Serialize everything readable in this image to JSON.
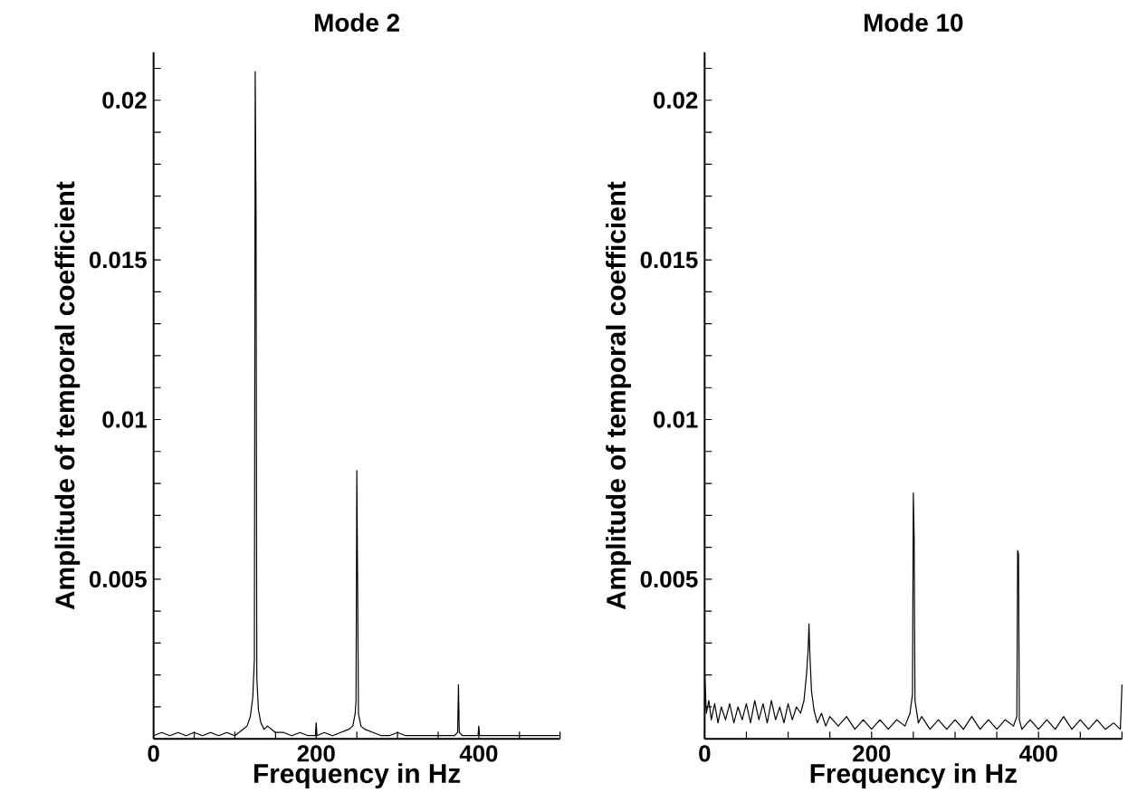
{
  "chart_data": [
    {
      "type": "line",
      "title": "Mode 2",
      "xlabel": "Frequency in Hz",
      "ylabel": "Amplitude of temporal coefficient",
      "xlim": [
        0,
        500
      ],
      "ylim": [
        0,
        0.0215
      ],
      "xticks": [
        0,
        {
          "value": 50,
          "label": null
        },
        {
          "value": 100,
          "label": null
        },
        {
          "value": 150,
          "label": null
        },
        200,
        {
          "value": 250,
          "label": null
        },
        {
          "value": 300,
          "label": null
        },
        {
          "value": 350,
          "label": null
        },
        400,
        {
          "value": 450,
          "label": null
        },
        {
          "value": 500,
          "label": null
        }
      ],
      "yticks": [
        {
          "value": 0.001,
          "label": null
        },
        {
          "value": 0.002,
          "label": null
        },
        {
          "value": 0.003,
          "label": null
        },
        {
          "value": 0.004,
          "label": null
        },
        0.005,
        {
          "value": 0.006,
          "label": null
        },
        {
          "value": 0.007,
          "label": null
        },
        {
          "value": 0.008,
          "label": null
        },
        {
          "value": 0.009,
          "label": null
        },
        0.01,
        {
          "value": 0.011,
          "label": null
        },
        {
          "value": 0.012,
          "label": null
        },
        {
          "value": 0.013,
          "label": null
        },
        {
          "value": 0.014,
          "label": null
        },
        0.015,
        {
          "value": 0.016,
          "label": null
        },
        {
          "value": 0.017,
          "label": null
        },
        {
          "value": 0.018,
          "label": null
        },
        {
          "value": 0.019,
          "label": null
        },
        0.02,
        {
          "value": 0.021,
          "label": null
        }
      ],
      "series": [
        {
          "color": "#000000",
          "x": [
            0,
            10,
            20,
            30,
            40,
            50,
            60,
            70,
            80,
            90,
            100,
            110,
            115,
            119,
            122,
            124,
            125,
            126,
            127,
            129,
            132,
            136,
            140,
            150,
            160,
            170,
            180,
            190,
            199,
            200,
            201,
            210,
            220,
            230,
            240,
            245,
            248,
            249,
            250,
            251,
            252,
            255,
            260,
            270,
            280,
            290,
            300,
            310,
            320,
            330,
            340,
            350,
            360,
            370,
            374,
            375,
            376,
            380,
            390,
            399,
            400,
            401,
            410,
            420,
            430,
            440,
            450,
            460,
            470,
            480,
            490,
            500
          ],
          "values": [
            0.0001,
            0.0002,
            0.0001,
            0.0002,
            0.0001,
            0.0002,
            0.0001,
            0.0002,
            0.0001,
            0.0002,
            0.0001,
            0.0003,
            0.0004,
            0.0007,
            0.0013,
            0.0025,
            0.0209,
            0.0168,
            0.0019,
            0.0009,
            0.0005,
            0.0003,
            0.0004,
            0.0002,
            0.0002,
            0.0001,
            0.0002,
            0.0001,
            0.0001,
            0.0005,
            0.0001,
            0.0002,
            0.0001,
            0.0002,
            0.0003,
            0.0004,
            0.0008,
            0.0012,
            0.0084,
            0.0047,
            0.0008,
            0.0004,
            0.0003,
            0.0002,
            0.0001,
            0.0001,
            0.0002,
            0.0001,
            0.0001,
            0.0001,
            0.0001,
            0.0001,
            0.0001,
            0.0001,
            0.0002,
            0.0017,
            0.0002,
            0.0001,
            0.0001,
            0.0001,
            0.0004,
            0.0001,
            0.0001,
            0.0001,
            0.0001,
            0.0001,
            0.0001,
            0.0001,
            0.0001,
            0.0001,
            0.0001,
            0.0001
          ]
        }
      ]
    },
    {
      "type": "line",
      "title": "Mode 10",
      "xlabel": "Frequency in Hz",
      "ylabel": "Amplitude of temporal coefficient",
      "xlim": [
        0,
        500
      ],
      "ylim": [
        0,
        0.0215
      ],
      "xticks": [
        0,
        {
          "value": 50,
          "label": null
        },
        {
          "value": 100,
          "label": null
        },
        {
          "value": 150,
          "label": null
        },
        200,
        {
          "value": 250,
          "label": null
        },
        {
          "value": 300,
          "label": null
        },
        {
          "value": 350,
          "label": null
        },
        400,
        {
          "value": 450,
          "label": null
        },
        {
          "value": 500,
          "label": null
        }
      ],
      "yticks": [
        {
          "value": 0.001,
          "label": null
        },
        {
          "value": 0.002,
          "label": null
        },
        {
          "value": 0.003,
          "label": null
        },
        {
          "value": 0.004,
          "label": null
        },
        0.005,
        {
          "value": 0.006,
          "label": null
        },
        {
          "value": 0.007,
          "label": null
        },
        {
          "value": 0.008,
          "label": null
        },
        {
          "value": 0.009,
          "label": null
        },
        0.01,
        {
          "value": 0.011,
          "label": null
        },
        {
          "value": 0.012,
          "label": null
        },
        {
          "value": 0.013,
          "label": null
        },
        {
          "value": 0.014,
          "label": null
        },
        0.015,
        {
          "value": 0.016,
          "label": null
        },
        {
          "value": 0.017,
          "label": null
        },
        {
          "value": 0.018,
          "label": null
        },
        {
          "value": 0.019,
          "label": null
        },
        0.02,
        {
          "value": 0.021,
          "label": null
        }
      ],
      "series": [
        {
          "color": "#000000",
          "x": [
            0,
            2,
            5,
            8,
            12,
            16,
            20,
            25,
            30,
            35,
            40,
            45,
            50,
            55,
            60,
            65,
            70,
            75,
            80,
            85,
            90,
            95,
            100,
            105,
            110,
            115,
            119,
            122,
            124,
            125,
            126,
            128,
            131,
            135,
            140,
            145,
            150,
            160,
            170,
            180,
            190,
            200,
            210,
            220,
            230,
            240,
            246,
            249,
            250,
            251,
            252,
            256,
            260,
            270,
            280,
            290,
            300,
            310,
            320,
            330,
            340,
            350,
            360,
            370,
            374,
            375,
            376,
            377,
            380,
            390,
            400,
            410,
            420,
            430,
            440,
            450,
            460,
            470,
            480,
            490,
            498,
            500
          ],
          "values": [
            0.0021,
            0.0008,
            0.0012,
            0.0006,
            0.0011,
            0.0005,
            0.001,
            0.0006,
            0.0011,
            0.0005,
            0.001,
            0.0006,
            0.0011,
            0.0005,
            0.0012,
            0.0006,
            0.0011,
            0.0005,
            0.0012,
            0.0006,
            0.001,
            0.0005,
            0.0011,
            0.0006,
            0.001,
            0.0008,
            0.0012,
            0.002,
            0.0028,
            0.0036,
            0.0027,
            0.0015,
            0.0009,
            0.0005,
            0.0008,
            0.0004,
            0.0007,
            0.0004,
            0.0007,
            0.0003,
            0.0006,
            0.0003,
            0.0006,
            0.0003,
            0.0006,
            0.0004,
            0.0008,
            0.0014,
            0.0077,
            0.0063,
            0.0012,
            0.0005,
            0.0007,
            0.0003,
            0.0006,
            0.0003,
            0.0006,
            0.0003,
            0.0007,
            0.0003,
            0.0006,
            0.0003,
            0.0006,
            0.0004,
            0.0007,
            0.0059,
            0.0058,
            0.0006,
            0.0003,
            0.0006,
            0.0003,
            0.0006,
            0.0003,
            0.0007,
            0.0003,
            0.0006,
            0.0003,
            0.0006,
            0.0003,
            0.0005,
            0.0003,
            0.0017
          ]
        }
      ]
    }
  ]
}
